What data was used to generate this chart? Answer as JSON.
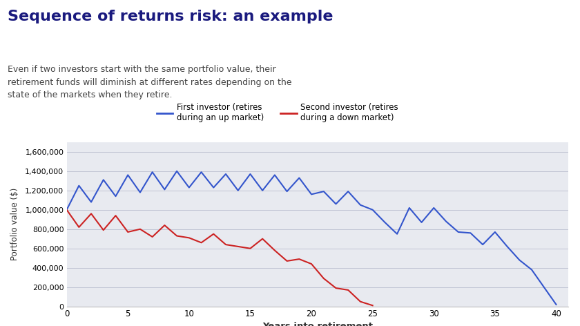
{
  "title": "Sequence of returns risk: an example",
  "subtitle": "Even if two investors start with the same portfolio value, their\nretirement funds will diminish at different rates depending on the\nstate of the markets when they retire.",
  "title_color": "#1a1a7e",
  "subtitle_color": "#444444",
  "xlabel": "Years into retirement",
  "ylabel": "Portfolio value ($)",
  "xlim": [
    0,
    41
  ],
  "ylim": [
    0,
    1700000
  ],
  "yticks": [
    0,
    200000,
    400000,
    600000,
    800000,
    1000000,
    1200000,
    1400000,
    1600000
  ],
  "xticks": [
    0,
    5,
    10,
    15,
    20,
    25,
    30,
    35,
    40
  ],
  "plot_bg_color": "#e8eaf0",
  "legend1_label": "First investor (retires\nduring an up market)",
  "legend2_label": "Second investor (retires\nduring a down market)",
  "blue_color": "#3355cc",
  "red_color": "#cc2222",
  "blue_data": [
    [
      0,
      1000000
    ],
    [
      1,
      1250000
    ],
    [
      2,
      1080000
    ],
    [
      3,
      1310000
    ],
    [
      4,
      1140000
    ],
    [
      5,
      1360000
    ],
    [
      6,
      1180000
    ],
    [
      7,
      1390000
    ],
    [
      8,
      1210000
    ],
    [
      9,
      1400000
    ],
    [
      10,
      1230000
    ],
    [
      11,
      1390000
    ],
    [
      12,
      1230000
    ],
    [
      13,
      1370000
    ],
    [
      14,
      1200000
    ],
    [
      15,
      1370000
    ],
    [
      16,
      1200000
    ],
    [
      17,
      1360000
    ],
    [
      18,
      1190000
    ],
    [
      19,
      1330000
    ],
    [
      20,
      1160000
    ],
    [
      21,
      1190000
    ],
    [
      22,
      1060000
    ],
    [
      23,
      1190000
    ],
    [
      24,
      1050000
    ],
    [
      25,
      1000000
    ],
    [
      26,
      870000
    ],
    [
      27,
      750000
    ],
    [
      28,
      1020000
    ],
    [
      29,
      870000
    ],
    [
      30,
      1020000
    ],
    [
      31,
      880000
    ],
    [
      32,
      770000
    ],
    [
      33,
      760000
    ],
    [
      34,
      640000
    ],
    [
      35,
      770000
    ],
    [
      36,
      620000
    ],
    [
      37,
      480000
    ],
    [
      38,
      380000
    ],
    [
      39,
      200000
    ],
    [
      40,
      20000
    ]
  ],
  "red_data": [
    [
      0,
      1000000
    ],
    [
      1,
      820000
    ],
    [
      2,
      960000
    ],
    [
      3,
      790000
    ],
    [
      4,
      940000
    ],
    [
      5,
      770000
    ],
    [
      6,
      800000
    ],
    [
      7,
      720000
    ],
    [
      8,
      840000
    ],
    [
      9,
      730000
    ],
    [
      10,
      710000
    ],
    [
      11,
      660000
    ],
    [
      12,
      750000
    ],
    [
      13,
      640000
    ],
    [
      14,
      620000
    ],
    [
      15,
      600000
    ],
    [
      16,
      700000
    ],
    [
      17,
      580000
    ],
    [
      18,
      470000
    ],
    [
      19,
      490000
    ],
    [
      20,
      440000
    ],
    [
      21,
      290000
    ],
    [
      22,
      190000
    ],
    [
      23,
      170000
    ],
    [
      24,
      50000
    ],
    [
      25,
      10000
    ]
  ]
}
